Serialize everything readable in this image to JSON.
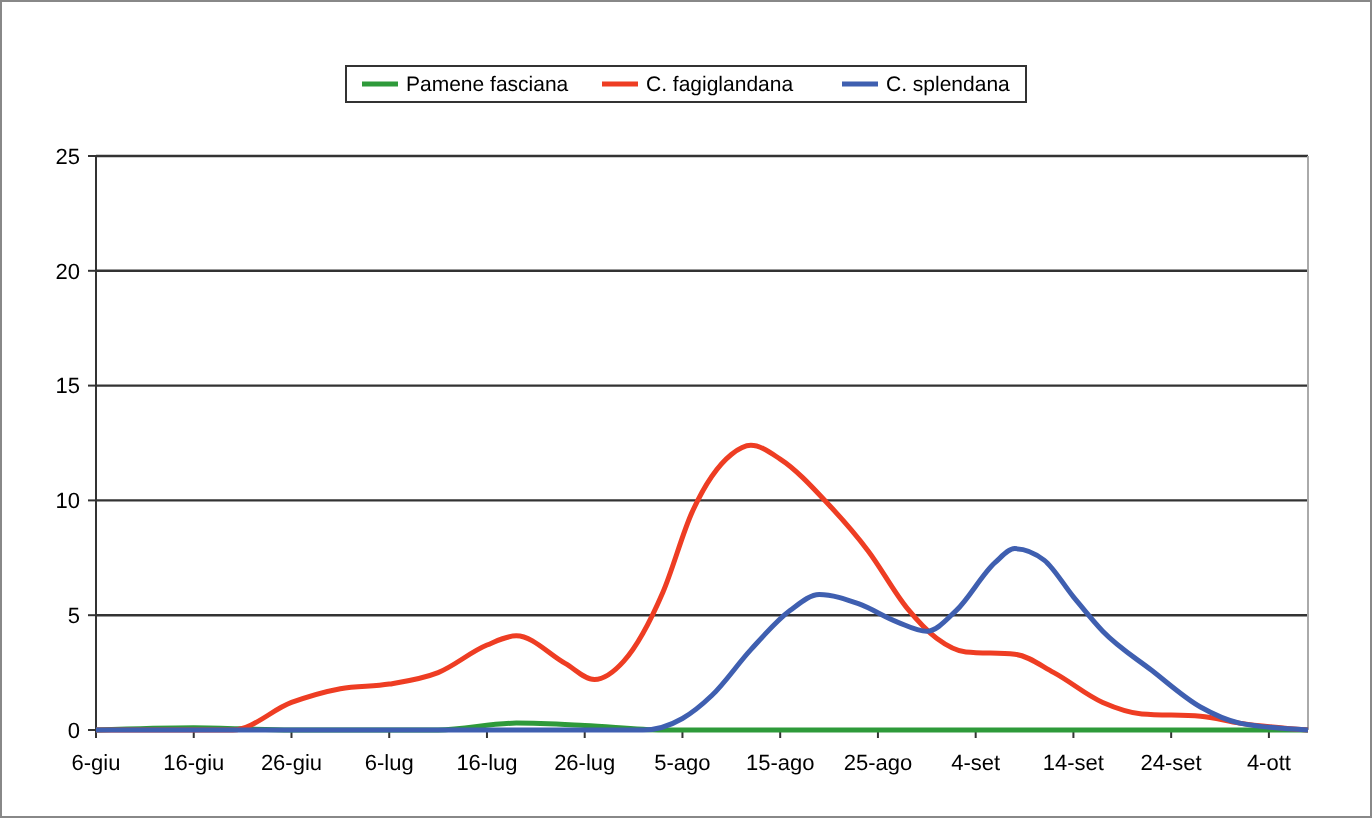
{
  "chart_data": {
    "type": "line",
    "legend": "top",
    "grid": "y",
    "marker": "none",
    "line_style": "solid",
    "xlim": [
      "--06-06",
      "--10-08"
    ],
    "xticks": [
      {
        "value": "--06-06",
        "label": "6-giu"
      },
      {
        "value": "--06-16",
        "label": "16-giu"
      },
      {
        "value": "--06-26",
        "label": "26-giu"
      },
      {
        "value": "--07-06",
        "label": "6-lug"
      },
      {
        "value": "--07-16",
        "label": "16-lug"
      },
      {
        "value": "--07-26",
        "label": "26-lug"
      },
      {
        "value": "--08-05",
        "label": "5-ago"
      },
      {
        "value": "--08-15",
        "label": "15-ago"
      },
      {
        "value": "--08-25",
        "label": "25-ago"
      },
      {
        "value": "--09-04",
        "label": "4-set"
      },
      {
        "value": "--09-14",
        "label": "14-set"
      },
      {
        "value": "--09-24",
        "label": "24-set"
      },
      {
        "value": "--10-04",
        "label": "4-ott"
      }
    ],
    "ylim": [
      0,
      25
    ],
    "yticks": [
      0,
      5,
      10,
      15,
      20,
      25
    ],
    "series": [
      {
        "name": "Pamene fasciana",
        "color": "#2e9a3a",
        "x": [
          "--06-06",
          "--06-16",
          "--06-26",
          "--07-11",
          "--07-19",
          "--07-26",
          "--08-03",
          "--10-08"
        ],
        "values": [
          0,
          0.1,
          0,
          0,
          0.3,
          0.2,
          0,
          0
        ]
      },
      {
        "name": "C. fagiglandana",
        "color": "#ee3d23",
        "x": [
          "--06-06",
          "--06-20",
          "--06-26",
          "--07-01",
          "--07-06",
          "--07-11",
          "--07-16",
          "--07-19",
          "--07-24",
          "--07-27",
          "--07-30",
          "--08-03",
          "--08-06",
          "--08-10",
          "--08-12",
          "--08-15",
          "--08-20",
          "--08-24",
          "--08-28",
          "--08-31",
          "--09-03",
          "--09-08",
          "--09-12",
          "--09-17",
          "--09-21",
          "--09-27",
          "--10-01",
          "--10-08"
        ],
        "values": [
          0,
          0,
          1.2,
          1.8,
          2.0,
          2.5,
          3.7,
          4.1,
          2.9,
          2.2,
          3.0,
          6,
          9.5,
          12.0,
          12.4,
          11.8,
          9.8,
          7.8,
          5.3,
          4.0,
          3.4,
          3.3,
          2.5,
          1.2,
          0.7,
          0.6,
          0.3,
          0
        ]
      },
      {
        "name": "C. splendana",
        "color": "#3f5fb0",
        "x": [
          "--06-06",
          "--08-01",
          "--08-05",
          "--08-08",
          "--08-12",
          "--08-16",
          "--08-19",
          "--08-23",
          "--08-27",
          "--08-30",
          "--09-02",
          "--09-06",
          "--09-08",
          "--09-11",
          "--09-14",
          "--09-17",
          "--09-22",
          "--09-27",
          "--10-01",
          "--10-08"
        ],
        "values": [
          0,
          0,
          0.5,
          1.5,
          3.5,
          5.2,
          5.9,
          5.5,
          4.7,
          4.3,
          5.2,
          7.3,
          7.9,
          7.4,
          5.8,
          4.3,
          2.6,
          1.0,
          0.3,
          0
        ]
      }
    ]
  }
}
